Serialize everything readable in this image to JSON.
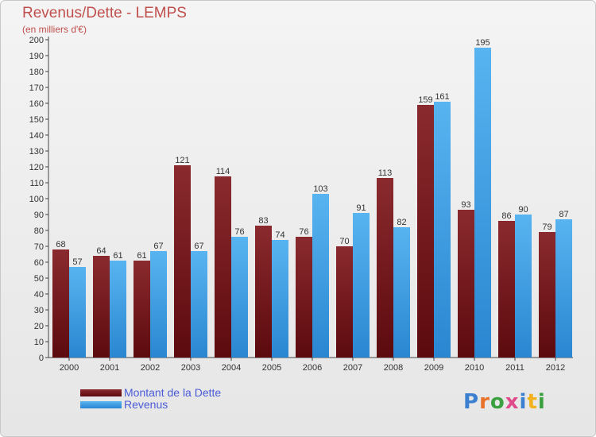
{
  "chart_data": {
    "type": "bar",
    "title": "Revenus/Dette - LEMPS",
    "subtitle": "(en milliers d'€)",
    "categories": [
      "2000",
      "2001",
      "2002",
      "2003",
      "2004",
      "2005",
      "2006",
      "2007",
      "2008",
      "2009",
      "2010",
      "2011",
      "2012"
    ],
    "series": [
      {
        "name": "Montant de la Dette",
        "color": "#7a1a1f",
        "values": [
          68,
          64,
          61,
          121,
          114,
          83,
          76,
          70,
          113,
          159,
          93,
          86,
          79
        ]
      },
      {
        "name": "Revenus",
        "color": "#3a9be0",
        "values": [
          57,
          61,
          67,
          67,
          76,
          74,
          103,
          91,
          82,
          161,
          195,
          90,
          87
        ]
      }
    ],
    "ylim": [
      0,
      200
    ],
    "ytick_step": 10,
    "xlabel": "",
    "ylabel": "",
    "grid": false,
    "legend_position": "bottom-left",
    "data_labels": true
  },
  "logo": {
    "text": "Proxiti",
    "letter_colors": [
      "#3a7fd0",
      "#e8722a",
      "#3aa040",
      "#e04a8a",
      "#3a7fd0",
      "#f2b21f",
      "#3aa040"
    ]
  }
}
